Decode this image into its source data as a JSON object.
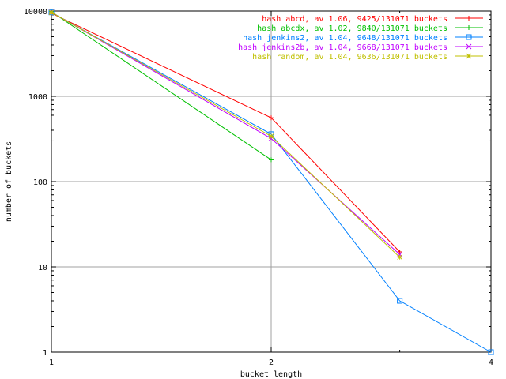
{
  "chart_data": {
    "type": "line",
    "xlabel": "bucket length",
    "ylabel": "number of buckets",
    "x_scale": "log2",
    "y_scale": "log10",
    "xlim": [
      1,
      4
    ],
    "ylim": [
      1,
      10000
    ],
    "x_ticks": [
      1,
      2,
      4
    ],
    "y_ticks": [
      1,
      10,
      100,
      1000,
      10000
    ],
    "grid": true,
    "legend_position": "top-right",
    "series": [
      {
        "name": "hash abcd, av 1.06, 9425/131071 buckets",
        "color": "#ff0000",
        "marker": "plus",
        "points": [
          [
            1,
            9425
          ],
          [
            2,
            560
          ],
          [
            3,
            15
          ]
        ]
      },
      {
        "name": "hash abcdx, av 1.02, 9840/131071 buckets",
        "color": "#00c000",
        "marker": "cross",
        "points": [
          [
            1,
            9840
          ],
          [
            2,
            180
          ]
        ]
      },
      {
        "name": "hash jenkins2, av 1.04, 9648/131071 buckets",
        "color": "#0080ff",
        "marker": "square",
        "points": [
          [
            1,
            9648
          ],
          [
            2,
            360
          ],
          [
            3,
            4
          ],
          [
            4,
            1
          ]
        ]
      },
      {
        "name": "hash jenkins2b, av 1.04, 9668/131071 buckets",
        "color": "#c000ff",
        "marker": "x",
        "points": [
          [
            1,
            9668
          ],
          [
            2,
            320
          ],
          [
            3,
            14
          ]
        ]
      },
      {
        "name": "hash random, av 1.04, 9636/131071 buckets",
        "color": "#c0c000",
        "marker": "star",
        "points": [
          [
            1,
            9636
          ],
          [
            2,
            340
          ],
          [
            3,
            13
          ]
        ]
      }
    ]
  }
}
